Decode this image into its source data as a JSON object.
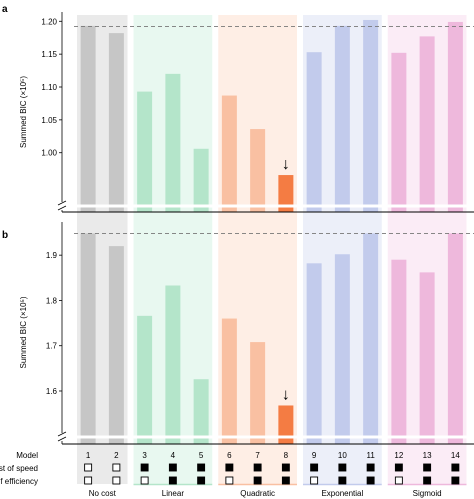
{
  "chart_data": [
    {
      "panel": "a",
      "type": "bar",
      "ylabel": "Summed BIC (×10⁵)",
      "ylim": [
        0.925,
        1.205
      ],
      "yticks": [
        "1.00",
        "1.05",
        "1.10",
        "1.15",
        "1.20"
      ],
      "reference_line": 1.192,
      "models": [
        "1",
        "2",
        "3",
        "4",
        "5",
        "6",
        "7",
        "8",
        "9",
        "10",
        "11",
        "12",
        "13",
        "14"
      ],
      "values": [
        1.193,
        1.182,
        1.093,
        1.12,
        1.006,
        1.087,
        1.036,
        0.966,
        1.153,
        1.193,
        1.202,
        1.152,
        1.177,
        1.199
      ],
      "best_model": "8",
      "annotation": "↓"
    },
    {
      "panel": "b",
      "type": "bar",
      "ylabel": "Summed BIC (×10⁵)",
      "ylim": [
        1.505,
        1.96
      ],
      "yticks": [
        "1.6",
        "1.7",
        "1.8",
        "1.9"
      ],
      "reference_line": 1.948,
      "models": [
        "1",
        "2",
        "3",
        "4",
        "5",
        "6",
        "7",
        "8",
        "9",
        "10",
        "11",
        "12",
        "13",
        "14"
      ],
      "values": [
        1.948,
        1.92,
        1.766,
        1.833,
        1.626,
        1.76,
        1.708,
        1.568,
        1.882,
        1.902,
        1.948,
        1.89,
        1.862,
        1.948
      ],
      "best_model": "8",
      "annotation": "↓"
    }
  ],
  "groups": [
    {
      "label": "No cost",
      "color": "#d9d9d9",
      "bar_color": "#c6c6c6",
      "models": [
        "1",
        "2"
      ]
    },
    {
      "label": "Linear",
      "color": "#d6f2e3",
      "bar_color": "#b4e5ca",
      "models": [
        "3",
        "4",
        "5"
      ]
    },
    {
      "label": "Quadratic",
      "color": "#fde0cf",
      "bar_color": "#f9c0a2",
      "models": [
        "6",
        "7",
        "8"
      ]
    },
    {
      "label": "Exponential",
      "color": "#dde2f4",
      "bar_color": "#c2cbec",
      "models": [
        "9",
        "10",
        "11"
      ]
    },
    {
      "label": "Sigmoid",
      "color": "#f8dcef",
      "bar_color": "#eeb8dc",
      "models": [
        "12",
        "13",
        "14"
      ]
    }
  ],
  "best_bar_color": "#f47c43",
  "table": {
    "row_labels": [
      "Model",
      "Cost of speed",
      "Cost of efficiency"
    ],
    "cost_of_speed": [
      false,
      false,
      true,
      true,
      true,
      true,
      true,
      true,
      true,
      true,
      true,
      true,
      true,
      true
    ],
    "cost_of_efficiency": [
      false,
      false,
      false,
      true,
      true,
      false,
      true,
      true,
      false,
      true,
      true,
      false,
      true,
      true
    ]
  }
}
